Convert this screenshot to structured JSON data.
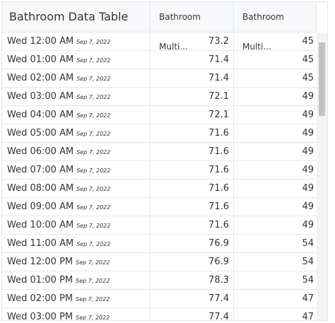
{
  "header": {
    "title": "Bathroom Data Table",
    "columns": [
      "Bathroom Multi...",
      "Bathroom Multi..."
    ]
  },
  "table": {
    "rows": [
      [
        "Wed 12:00 AM",
        "Sep 7, 2022",
        73.2,
        45
      ],
      [
        "Wed 01:00 AM",
        "Sep 7, 2022",
        71.4,
        45
      ],
      [
        "Wed 02:00 AM",
        "Sep 7, 2022",
        71.4,
        45
      ],
      [
        "Wed 03:00 AM",
        "Sep 7, 2022",
        72.1,
        49
      ],
      [
        "Wed 04:00 AM",
        "Sep 7, 2022",
        72.1,
        49
      ],
      [
        "Wed 05:00 AM",
        "Sep 7, 2022",
        71.6,
        49
      ],
      [
        "Wed 06:00 AM",
        "Sep 7, 2022",
        71.6,
        49
      ],
      [
        "Wed 07:00 AM",
        "Sep 7, 2022",
        71.6,
        49
      ],
      [
        "Wed 08:00 AM",
        "Sep 7, 2022",
        71.6,
        49
      ],
      [
        "Wed 09:00 AM",
        "Sep 7, 2022",
        71.6,
        49
      ],
      [
        "Wed 10:00 AM",
        "Sep 7, 2022",
        71.6,
        49
      ],
      [
        "Wed 11:00 AM",
        "Sep 7, 2022",
        76.9,
        54
      ],
      [
        "Wed 12:00 PM",
        "Sep 7, 2022",
        76.9,
        54
      ],
      [
        "Wed 01:00 PM",
        "Sep 7, 2022",
        78.3,
        54
      ],
      [
        "Wed 02:00 PM",
        "Sep 7, 2022",
        77.4,
        47
      ],
      [
        "Wed 03:00 PM",
        "Sep 7, 2022",
        77.4,
        47
      ]
    ]
  }
}
